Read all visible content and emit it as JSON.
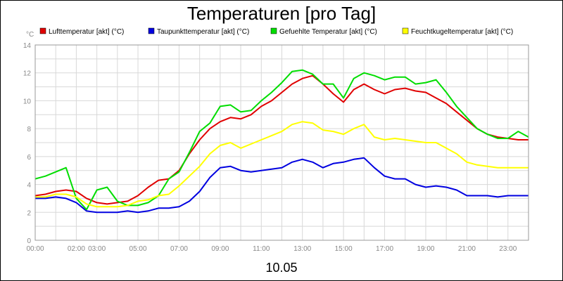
{
  "chart_data": {
    "type": "line",
    "title": "Temperaturen [pro Tag]",
    "ylabel": "°C",
    "xlabel": "10.05",
    "ylim": [
      0,
      14
    ],
    "xlim": [
      0,
      24
    ],
    "yticks": [
      "0",
      "2",
      "4",
      "6",
      "8",
      "10",
      "12",
      "14"
    ],
    "xticks": [
      {
        "t": 0,
        "label": "00:00"
      },
      {
        "t": 2,
        "label": "02:00"
      },
      {
        "t": 3,
        "label": "03:00"
      },
      {
        "t": 5,
        "label": "05:00"
      },
      {
        "t": 7,
        "label": "07:00"
      },
      {
        "t": 9,
        "label": "09:00"
      },
      {
        "t": 11,
        "label": "11:00"
      },
      {
        "t": 13,
        "label": "13:00"
      },
      {
        "t": 15,
        "label": "15:00"
      },
      {
        "t": 17,
        "label": "17:00"
      },
      {
        "t": 19,
        "label": "19:00"
      },
      {
        "t": 21,
        "label": "21:00"
      },
      {
        "t": 23,
        "label": "23:00"
      }
    ],
    "grid": true,
    "legend_position": "top",
    "series": [
      {
        "name": "Lufttemperatur [akt] (°C)",
        "color": "#e00000",
        "values": [
          [
            0,
            3.2
          ],
          [
            0.5,
            3.3
          ],
          [
            1,
            3.5
          ],
          [
            1.5,
            3.6
          ],
          [
            2,
            3.5
          ],
          [
            2.5,
            3.0
          ],
          [
            3,
            2.7
          ],
          [
            3.5,
            2.6
          ],
          [
            4,
            2.7
          ],
          [
            4.5,
            2.8
          ],
          [
            5,
            3.2
          ],
          [
            5.5,
            3.8
          ],
          [
            6,
            4.3
          ],
          [
            6.5,
            4.4
          ],
          [
            7,
            5.0
          ],
          [
            7.5,
            6.2
          ],
          [
            8,
            7.2
          ],
          [
            8.5,
            8.0
          ],
          [
            9,
            8.5
          ],
          [
            9.5,
            8.8
          ],
          [
            10,
            8.7
          ],
          [
            10.5,
            9.0
          ],
          [
            11,
            9.6
          ],
          [
            11.5,
            10.0
          ],
          [
            12,
            10.6
          ],
          [
            12.5,
            11.2
          ],
          [
            13,
            11.6
          ],
          [
            13.5,
            11.8
          ],
          [
            14,
            11.2
          ],
          [
            14.5,
            10.5
          ],
          [
            15,
            9.9
          ],
          [
            15.5,
            10.8
          ],
          [
            16,
            11.2
          ],
          [
            16.5,
            10.8
          ],
          [
            17,
            10.5
          ],
          [
            17.5,
            10.8
          ],
          [
            18,
            10.9
          ],
          [
            18.5,
            10.7
          ],
          [
            19,
            10.6
          ],
          [
            19.5,
            10.2
          ],
          [
            20,
            9.8
          ],
          [
            20.5,
            9.2
          ],
          [
            21,
            8.6
          ],
          [
            21.5,
            8.0
          ],
          [
            22,
            7.6
          ],
          [
            22.5,
            7.4
          ],
          [
            23,
            7.3
          ],
          [
            23.5,
            7.2
          ],
          [
            24,
            7.2
          ]
        ]
      },
      {
        "name": "Taupunkttemperatur [akt] (°C)",
        "color": "#0000e0",
        "values": [
          [
            0,
            3.0
          ],
          [
            0.5,
            3.0
          ],
          [
            1,
            3.1
          ],
          [
            1.5,
            3.0
          ],
          [
            2,
            2.7
          ],
          [
            2.5,
            2.1
          ],
          [
            3,
            2.0
          ],
          [
            3.5,
            2.0
          ],
          [
            4,
            2.0
          ],
          [
            4.5,
            2.1
          ],
          [
            5,
            2.0
          ],
          [
            5.5,
            2.1
          ],
          [
            6,
            2.3
          ],
          [
            6.5,
            2.3
          ],
          [
            7,
            2.4
          ],
          [
            7.5,
            2.8
          ],
          [
            8,
            3.5
          ],
          [
            8.5,
            4.5
          ],
          [
            9,
            5.2
          ],
          [
            9.5,
            5.3
          ],
          [
            10,
            5.0
          ],
          [
            10.5,
            4.9
          ],
          [
            11,
            5.0
          ],
          [
            11.5,
            5.1
          ],
          [
            12,
            5.2
          ],
          [
            12.5,
            5.6
          ],
          [
            13,
            5.8
          ],
          [
            13.5,
            5.6
          ],
          [
            14,
            5.2
          ],
          [
            14.5,
            5.5
          ],
          [
            15,
            5.6
          ],
          [
            15.5,
            5.8
          ],
          [
            16,
            5.9
          ],
          [
            16.5,
            5.2
          ],
          [
            17,
            4.6
          ],
          [
            17.5,
            4.4
          ],
          [
            18,
            4.4
          ],
          [
            18.5,
            4.0
          ],
          [
            19,
            3.8
          ],
          [
            19.5,
            3.9
          ],
          [
            20,
            3.8
          ],
          [
            20.5,
            3.6
          ],
          [
            21,
            3.2
          ],
          [
            21.5,
            3.2
          ],
          [
            22,
            3.2
          ],
          [
            22.5,
            3.1
          ],
          [
            23,
            3.2
          ],
          [
            23.5,
            3.2
          ],
          [
            24,
            3.2
          ]
        ]
      },
      {
        "name": "Gefuehlte Temperatur [akt] (°C)",
        "color": "#00dd00",
        "values": [
          [
            0,
            4.4
          ],
          [
            0.5,
            4.6
          ],
          [
            1,
            4.9
          ],
          [
            1.5,
            5.2
          ],
          [
            2,
            3.0
          ],
          [
            2.5,
            2.2
          ],
          [
            3,
            3.6
          ],
          [
            3.5,
            3.8
          ],
          [
            4,
            2.8
          ],
          [
            4.5,
            2.5
          ],
          [
            5,
            2.5
          ],
          [
            5.5,
            2.7
          ],
          [
            6,
            3.2
          ],
          [
            6.5,
            4.4
          ],
          [
            7,
            4.9
          ],
          [
            7.5,
            6.3
          ],
          [
            8,
            7.8
          ],
          [
            8.5,
            8.4
          ],
          [
            9,
            9.6
          ],
          [
            9.5,
            9.7
          ],
          [
            10,
            9.2
          ],
          [
            10.5,
            9.3
          ],
          [
            11,
            10.0
          ],
          [
            11.5,
            10.6
          ],
          [
            12,
            11.3
          ],
          [
            12.5,
            12.1
          ],
          [
            13,
            12.2
          ],
          [
            13.5,
            11.9
          ],
          [
            14,
            11.2
          ],
          [
            14.5,
            11.2
          ],
          [
            15,
            10.2
          ],
          [
            15.5,
            11.6
          ],
          [
            16,
            12.0
          ],
          [
            16.5,
            11.8
          ],
          [
            17,
            11.5
          ],
          [
            17.5,
            11.7
          ],
          [
            18,
            11.7
          ],
          [
            18.5,
            11.2
          ],
          [
            19,
            11.3
          ],
          [
            19.5,
            11.5
          ],
          [
            20,
            10.6
          ],
          [
            20.5,
            9.6
          ],
          [
            21,
            8.8
          ],
          [
            21.5,
            8.0
          ],
          [
            22,
            7.6
          ],
          [
            22.5,
            7.3
          ],
          [
            23,
            7.3
          ],
          [
            23.5,
            7.8
          ],
          [
            24,
            7.4
          ]
        ]
      },
      {
        "name": "Feuchtkugeltemperatur [akt] (°C)",
        "color": "#ffff00",
        "values": [
          [
            0,
            3.1
          ],
          [
            0.5,
            3.1
          ],
          [
            1,
            3.3
          ],
          [
            1.5,
            3.3
          ],
          [
            2,
            3.1
          ],
          [
            2.5,
            2.6
          ],
          [
            3,
            2.4
          ],
          [
            3.5,
            2.4
          ],
          [
            4,
            2.4
          ],
          [
            4.5,
            2.5
          ],
          [
            5,
            2.8
          ],
          [
            5.5,
            2.9
          ],
          [
            6,
            3.2
          ],
          [
            6.5,
            3.3
          ],
          [
            7,
            3.9
          ],
          [
            7.5,
            4.6
          ],
          [
            8,
            5.3
          ],
          [
            8.5,
            6.2
          ],
          [
            9,
            6.8
          ],
          [
            9.5,
            7.0
          ],
          [
            10,
            6.6
          ],
          [
            10.5,
            6.9
          ],
          [
            11,
            7.2
          ],
          [
            11.5,
            7.5
          ],
          [
            12,
            7.8
          ],
          [
            12.5,
            8.3
          ],
          [
            13,
            8.5
          ],
          [
            13.5,
            8.4
          ],
          [
            14,
            7.9
          ],
          [
            14.5,
            7.8
          ],
          [
            15,
            7.6
          ],
          [
            15.5,
            8.0
          ],
          [
            16,
            8.3
          ],
          [
            16.5,
            7.4
          ],
          [
            17,
            7.2
          ],
          [
            17.5,
            7.3
          ],
          [
            18,
            7.2
          ],
          [
            18.5,
            7.1
          ],
          [
            19,
            7.0
          ],
          [
            19.5,
            7.0
          ],
          [
            20,
            6.6
          ],
          [
            20.5,
            6.2
          ],
          [
            21,
            5.6
          ],
          [
            21.5,
            5.4
          ],
          [
            22,
            5.3
          ],
          [
            22.5,
            5.2
          ],
          [
            23,
            5.2
          ],
          [
            23.5,
            5.2
          ],
          [
            24,
            5.2
          ]
        ]
      }
    ]
  }
}
